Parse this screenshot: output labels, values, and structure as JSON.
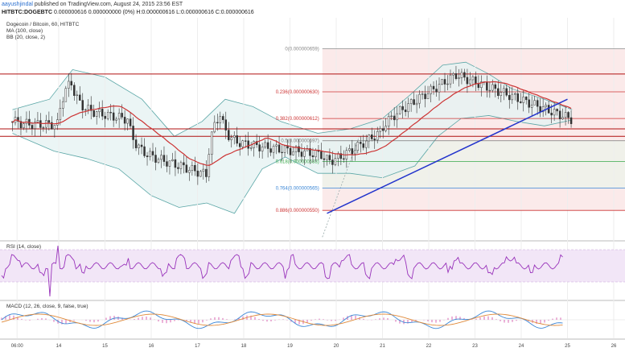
{
  "header": {
    "author": "aayushjindal",
    "published": "published on TradingView.com, August 24, 2015 23:56 EST",
    "symbol": "HITBTC:DOGEBTC",
    "values": "0.000000616 0.000000000 (0%) H:0.000000616 L:0.000000616 C:0.000000616"
  },
  "legend": {
    "pair": "Dogecoin / Bitcoin, 60, HITBTC",
    "ma": "MA (100, close)",
    "bb": "BB (20, close, 2)",
    "rsi": "RSI (14, close)",
    "macd": "MACD (12, 26, close, 9, false, true)"
  },
  "colors": {
    "candle": "#333333",
    "bb_band": "#5aa6a6",
    "bb_fill": "#e6f2f2",
    "ma": "#cc3333",
    "trendline": "#2233cc",
    "rsi_line": "#9933bb",
    "rsi_fill": "#f2e6f7",
    "macd_line": "#3a86d6",
    "signal_line": "#e08a3a",
    "hist": "#d040a0",
    "sr_line": "#b01010",
    "fib_zone": "#fbeaea"
  },
  "chart_data": [
    {
      "type": "candlestick",
      "x_ticks": [
        "06:00",
        "14",
        "15",
        "16",
        "17",
        "18",
        "19",
        "20",
        "21",
        "22",
        "23",
        "24",
        "25",
        "26"
      ],
      "support_resistance": [
        6.42e-07,
        6.05e-07,
        6e-07
      ],
      "fib_levels": [
        {
          "label": "0(0.000000659)",
          "ratio": 0,
          "value": 6.59e-07,
          "color": "#888888"
        },
        {
          "label": "0.236(0.000000630)",
          "ratio": 0.236,
          "value": 6.3e-07,
          "color": "#cc3333"
        },
        {
          "label": "0.382(0.000000612)",
          "ratio": 0.382,
          "value": 6.12e-07,
          "color": "#cc3333"
        },
        {
          "label": "0.5(0.000000597)",
          "ratio": 0.5,
          "value": 5.97e-07,
          "color": "#7a7a7a"
        },
        {
          "label": "0.618(0.000000583)",
          "ratio": 0.618,
          "value": 5.83e-07,
          "color": "#39a84a"
        },
        {
          "label": "0.764(0.000000565)",
          "ratio": 0.764,
          "value": 5.65e-07,
          "color": "#3a86d6"
        },
        {
          "label": "0.886(0.000000550)",
          "ratio": 0.886,
          "value": 5.5e-07,
          "color": "#cc3333"
        }
      ],
      "trendline": {
        "from": [
          19.8,
          5.48e-07
        ],
        "to": [
          25.0,
          6.25e-07
        ]
      },
      "ylim": [
        5.3e-07,
        6.8e-07
      ],
      "xlim": [
        13.0,
        26.0
      ]
    },
    {
      "type": "line",
      "name": "RSI",
      "ylim": [
        0,
        100
      ]
    },
    {
      "type": "line",
      "name": "MACD",
      "ylim": [
        -1,
        1
      ]
    }
  ]
}
